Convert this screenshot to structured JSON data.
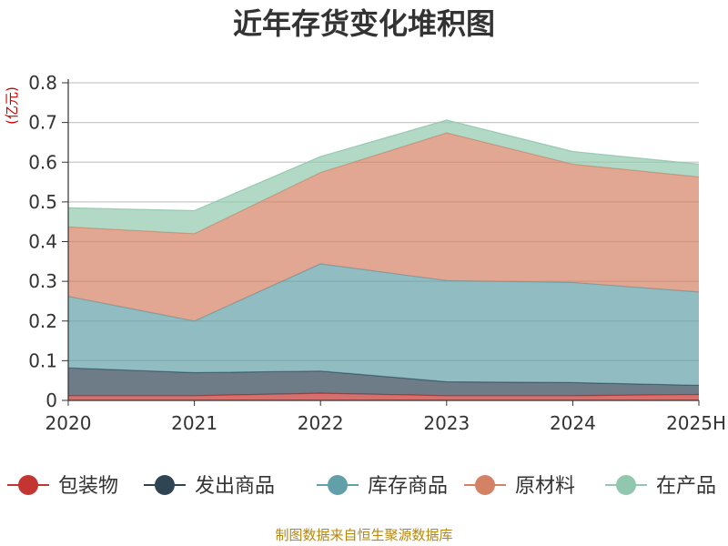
{
  "chart_data": {
    "type": "area",
    "stacked": true,
    "title": "近年存货变化堆积图",
    "ylabel": "(亿元)",
    "xlabel": "",
    "categories": [
      "2020",
      "2021",
      "2022",
      "2023",
      "2024",
      "2025H"
    ],
    "ylim": [
      0,
      0.8
    ],
    "yticks": [
      "0",
      "0.1",
      "0.2",
      "0.3",
      "0.4",
      "0.5",
      "0.6",
      "0.7",
      "0.8"
    ],
    "grid": true,
    "legend_position": "bottom",
    "series": [
      {
        "name": "包装物",
        "color": "#c23531",
        "values": [
          0.012,
          0.012,
          0.018,
          0.012,
          0.012,
          0.015
        ]
      },
      {
        "name": "发出商品",
        "color": "#2f4554",
        "values": [
          0.07,
          0.058,
          0.056,
          0.035,
          0.033,
          0.023
        ]
      },
      {
        "name": "库存商品",
        "color": "#61a0a8",
        "values": [
          0.18,
          0.13,
          0.27,
          0.255,
          0.252,
          0.235
        ]
      },
      {
        "name": "原材料",
        "color": "#d48265",
        "values": [
          0.175,
          0.22,
          0.23,
          0.372,
          0.298,
          0.29
        ]
      },
      {
        "name": "在产品",
        "color": "#91c7ae",
        "values": [
          0.048,
          0.058,
          0.04,
          0.032,
          0.032,
          0.032
        ]
      }
    ]
  },
  "footer": {
    "source": "制图数据来自恒生聚源数据库"
  }
}
